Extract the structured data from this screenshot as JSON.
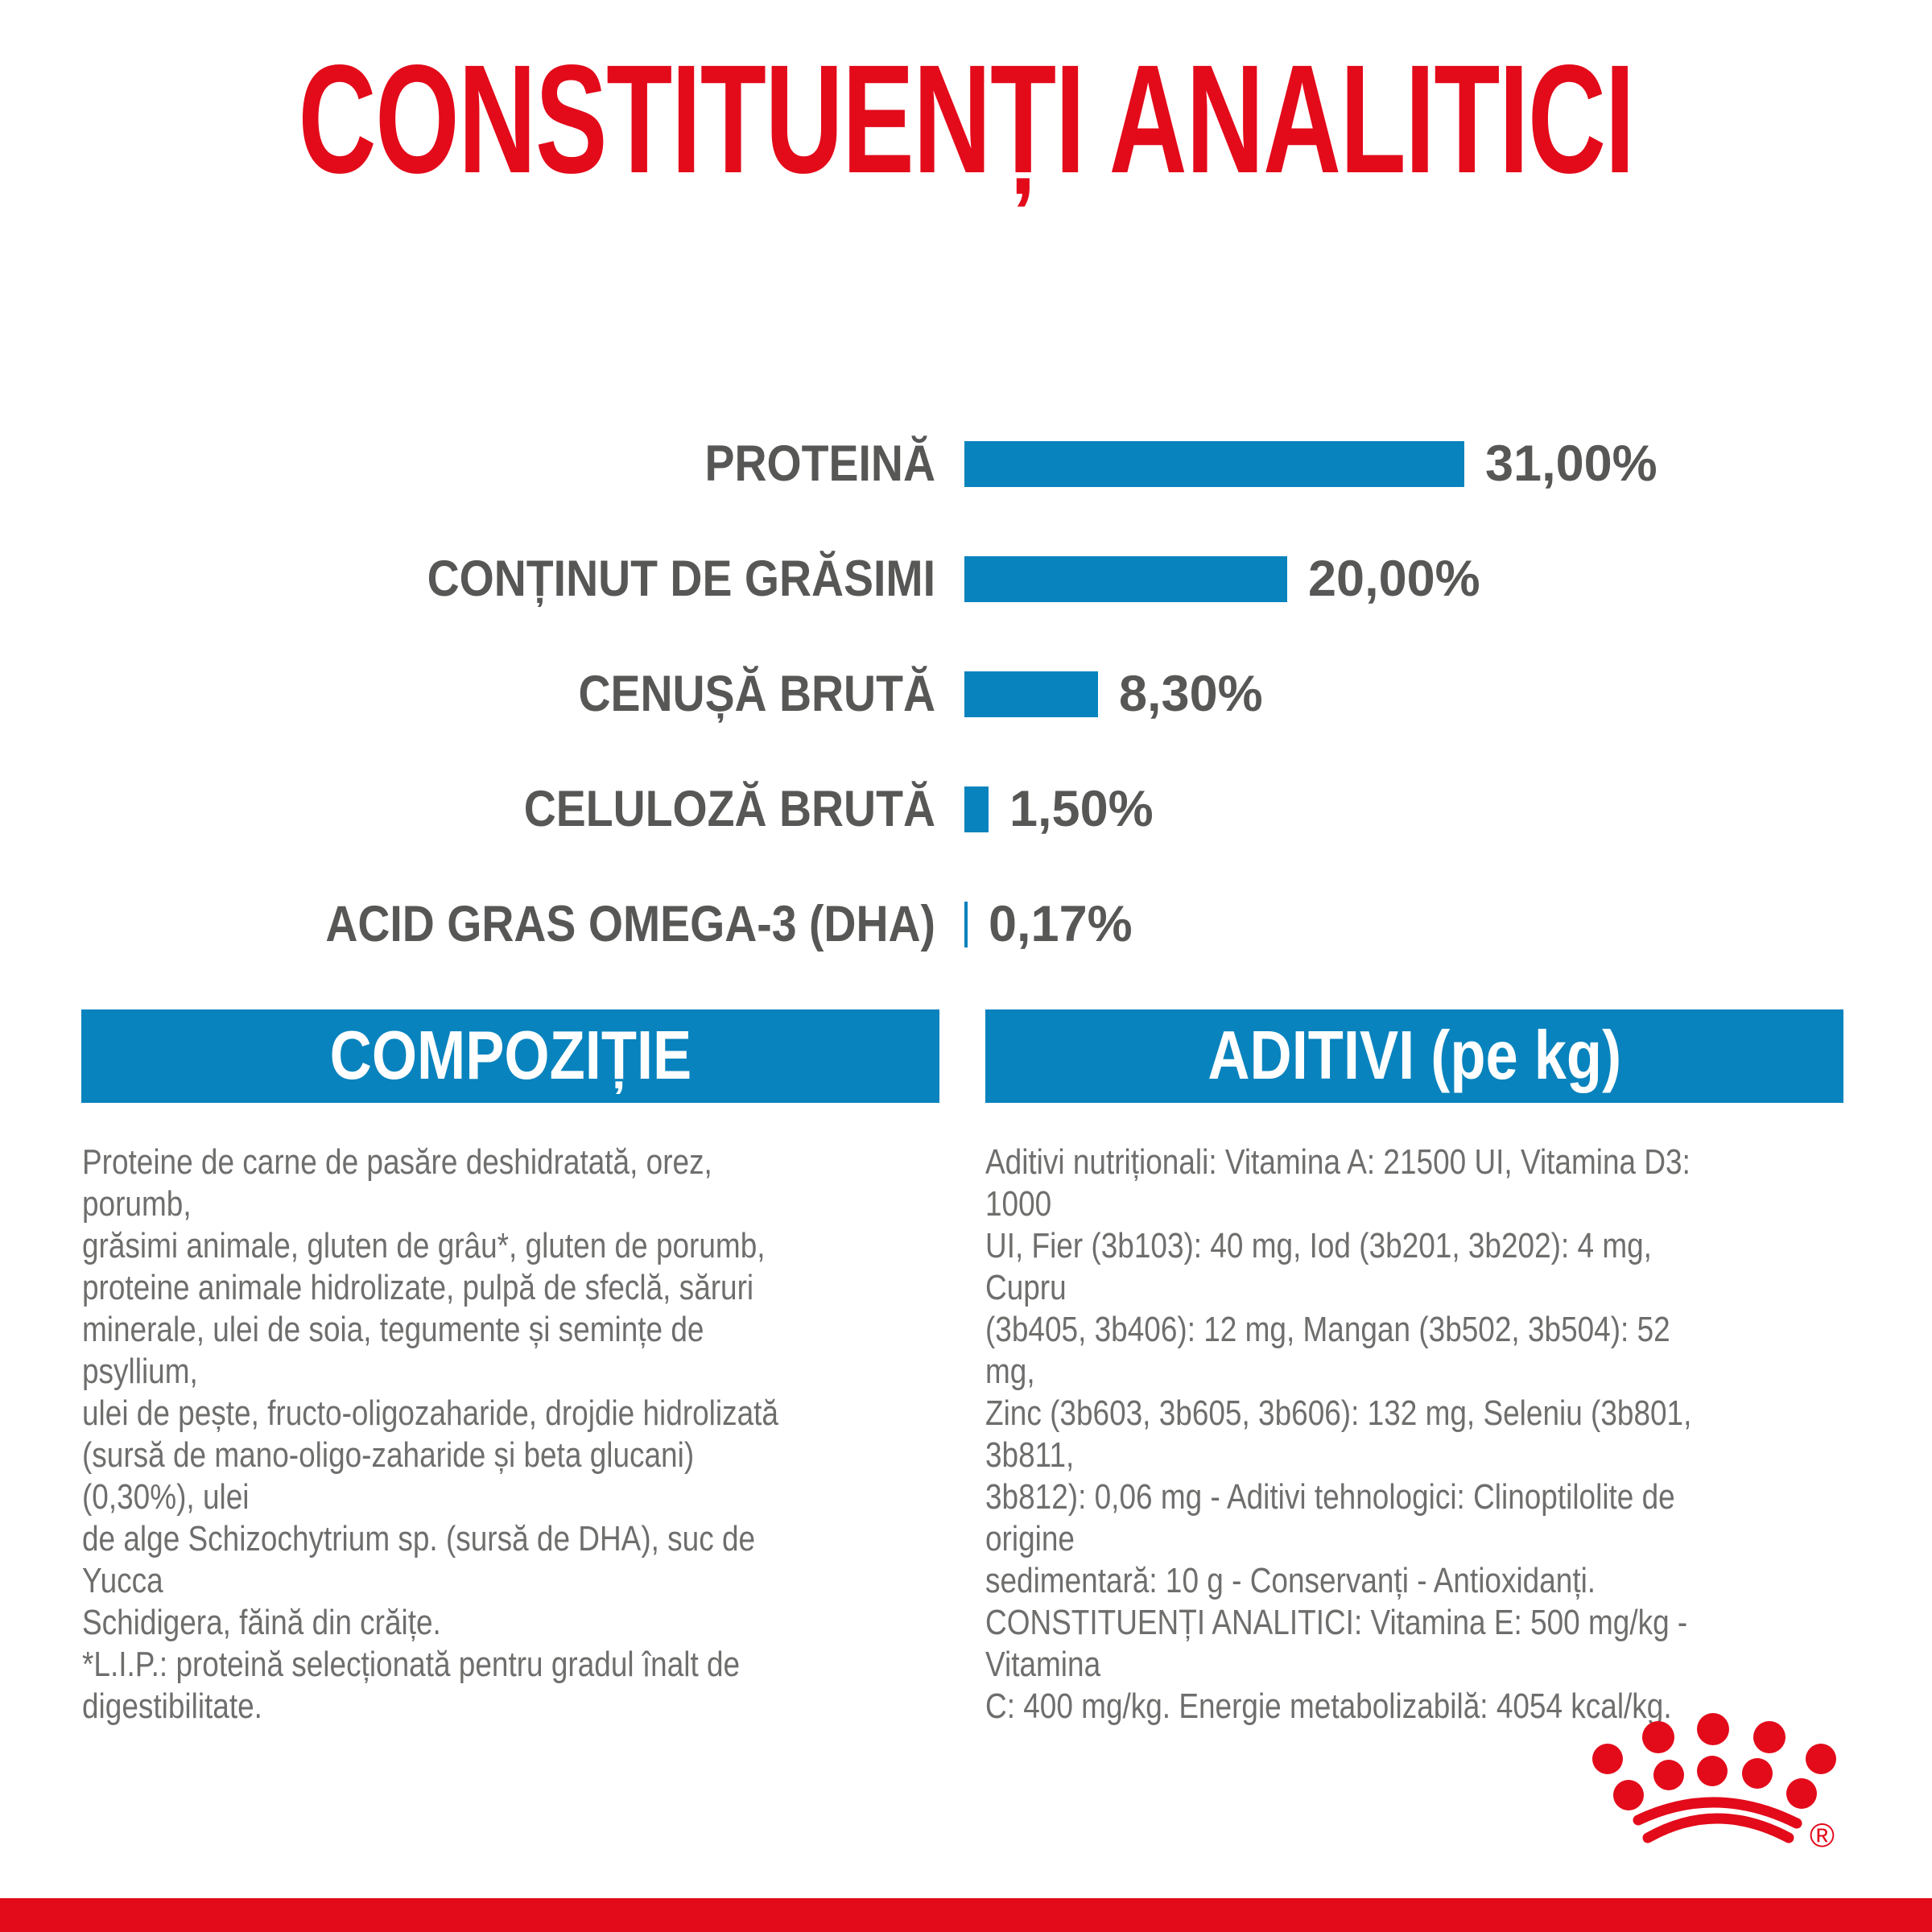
{
  "title": "CONSTITUENȚI ANALITICI",
  "chart_data": {
    "type": "bar",
    "orientation": "horizontal",
    "categories": [
      "PROTEINĂ",
      "CONȚINUT DE GRĂSIMI",
      "CENUȘĂ BRUTĂ",
      "CELULOZĂ BRUTĂ",
      "ACID GRAS OMEGA-3 (DHA)"
    ],
    "values": [
      31.0,
      20.0,
      8.3,
      1.5,
      0.17
    ],
    "value_labels": [
      "31,00%",
      "20,00%",
      "8,30%",
      "1,50%",
      "0,17%"
    ],
    "unit": "%",
    "xlim": [
      0,
      31
    ],
    "grid": false,
    "axes_shown": false,
    "bar_color": "#0883BE",
    "label_color": "#575756"
  },
  "sections": {
    "composition": {
      "heading": "COMPOZIȚIE",
      "lines": [
        "Proteine de carne de pasăre deshidratată, orez, porumb,",
        "grăsimi animale, gluten de grâu*, gluten de porumb,",
        "proteine animale hidrolizate, pulpă de sfeclă, săruri",
        "minerale, ulei de soia, tegumente și semințe de psyllium,",
        "ulei de pește, fructo-oligozaharide, drojdie hidrolizată",
        "(sursă de mano-oligo-zaharide și beta glucani) (0,30%), ulei",
        "de alge Schizochytrium sp. (sursă de DHA), suc de Yucca",
        "Schidigera, făină din crăițe.",
        "*L.I.P.: proteină selecționată pentru gradul înalt de",
        "digestibilitate."
      ]
    },
    "additives": {
      "heading": "ADITIVI (pe kg)",
      "lines": [
        "Aditivi nutriționali: Vitamina A: 21500 UI, Vitamina D3: 1000",
        "UI, Fier (3b103): 40 mg, Iod (3b201, 3b202): 4 mg, Cupru",
        "(3b405, 3b406): 12 mg, Mangan (3b502, 3b504): 52 mg,",
        "Zinc (3b603, 3b605, 3b606): 132 mg, Seleniu (3b801, 3b811,",
        "3b812): 0,06 mg - Aditivi tehnologici: Clinoptilolite de origine",
        "sedimentară: 10 g - Conservanți - Antioxidanți.",
        "CONSTITUENȚI ANALITICI: Vitamina E: 500 mg/kg - Vitamina",
        "C: 400 mg/kg. Energie metabolizabilă: 4054 kcal/kg."
      ]
    }
  },
  "brand": {
    "logo": "royal-canin-crown",
    "registered_mark": "®"
  },
  "colors": {
    "red": "#E30A1A",
    "blue": "#0883BE",
    "label_gray": "#575756",
    "body_gray": "#6E6E6C",
    "background": "#FFFFFF"
  }
}
